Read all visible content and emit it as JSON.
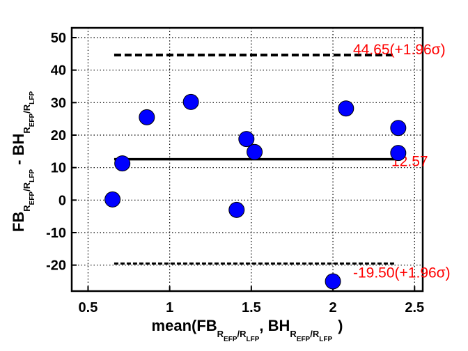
{
  "chart_data": {
    "type": "scatter",
    "title": "",
    "xlabel": {
      "prefix": "mean(FB",
      "sub1": "R",
      "sub1_sub": "EFP",
      "sep": "/R",
      "sub2_sub": "LFP",
      "mid": ", BH",
      "sub3": "R",
      "sub3_sub": "EFP",
      "sep2": "/R",
      "sub4_sub": "LFP",
      "suffix": ")"
    },
    "ylabel": {
      "prefix": "FB",
      "sub1": "R",
      "sub1_sub": "EFP",
      "sep": "/R",
      "sub2_sub": "LFP",
      "mid": " - BH",
      "sub3": "R",
      "sub3_sub": "EFP",
      "sep2": "/R",
      "sub4_sub": "LFP"
    },
    "xlim": [
      0.4,
      2.55
    ],
    "ylim": [
      -28,
      53
    ],
    "xticks": [
      0.5,
      1,
      1.5,
      2,
      2.5
    ],
    "xtick_labels": [
      "0.5",
      "1",
      "1.5",
      "2",
      "2.5"
    ],
    "yticks": [
      -20,
      -10,
      0,
      10,
      20,
      30,
      40,
      50
    ],
    "ytick_labels": [
      "-20",
      "-10",
      "0",
      "10",
      "20",
      "30",
      "40",
      "50"
    ],
    "grid": true,
    "grid_style": "dotted",
    "point_color": "#0000ff",
    "line_color": "#000000",
    "label_color": "#ff0000",
    "points": [
      {
        "x": 0.65,
        "y": 0.2
      },
      {
        "x": 0.71,
        "y": 11.3
      },
      {
        "x": 0.86,
        "y": 25.5
      },
      {
        "x": 1.13,
        "y": 30.2
      },
      {
        "x": 1.41,
        "y": -3.0
      },
      {
        "x": 1.47,
        "y": 18.8
      },
      {
        "x": 1.52,
        "y": 14.8
      },
      {
        "x": 2.08,
        "y": 28.2
      },
      {
        "x": 2.0,
        "y": -25.0
      },
      {
        "x": 2.4,
        "y": 22.2
      },
      {
        "x": 2.4,
        "y": 14.5
      }
    ],
    "reference_lines": [
      {
        "y": 44.65,
        "x_start": 0.66,
        "x_end": 2.38,
        "style": "dashed",
        "label": "44.65(+1.96σ)"
      },
      {
        "y": 12.57,
        "x_start": 0.66,
        "x_end": 2.38,
        "style": "solid",
        "label": "12.57"
      },
      {
        "y": -19.5,
        "x_start": 0.66,
        "x_end": 2.38,
        "style": "dashed",
        "label": "-19.50(+1.96σ)"
      }
    ]
  }
}
